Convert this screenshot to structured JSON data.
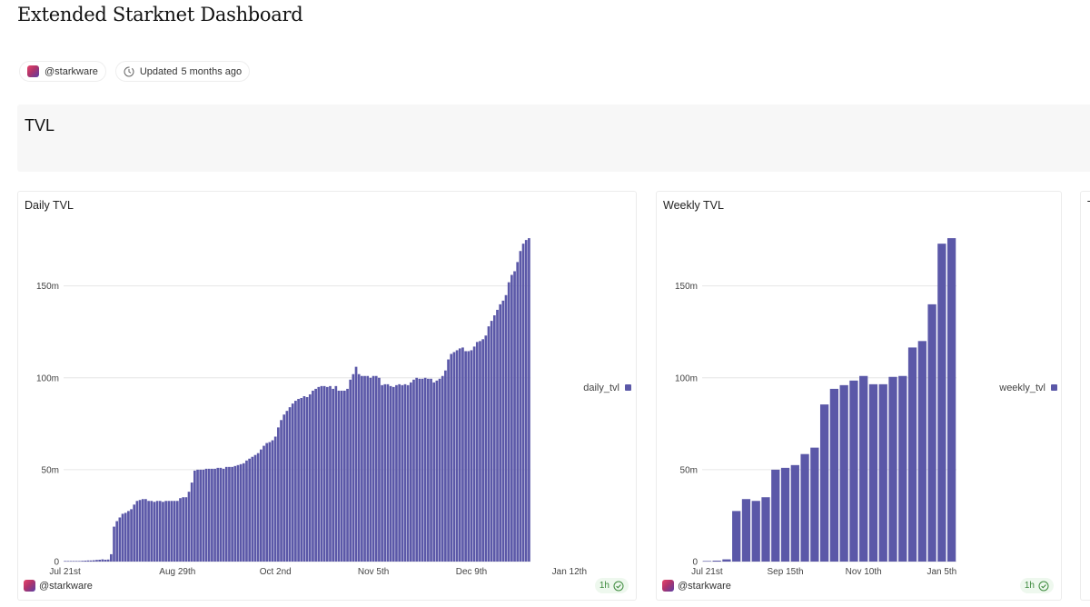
{
  "page": {
    "title": "Extended Starknet Dashboard",
    "author": "@starkware",
    "updated_label": "Updated",
    "updated_value": "5 months ago"
  },
  "section": {
    "title": "TVL"
  },
  "colors": {
    "bar": "#5b58a8",
    "grid": "#e6e6e6",
    "badge_text": "#3d8a3d"
  },
  "cards": [
    {
      "title": "Daily TVL",
      "author": "@starkware",
      "refresh": "1h"
    },
    {
      "title": "Weekly TVL",
      "author": "@starkware",
      "refresh": "1h"
    },
    {
      "title": "T"
    }
  ],
  "chart_data": [
    {
      "type": "bar",
      "series": [
        {
          "name": "daily_tvl",
          "values": [
            0.3,
            0.3,
            0.3,
            0.3,
            0.3,
            0.3,
            0.4,
            0.5,
            0.6,
            0.6,
            0.7,
            0.9,
            1.0,
            1.2,
            1.0,
            1.1,
            4.0,
            19.0,
            22.0,
            24.0,
            26.0,
            26.5,
            27.5,
            28.5,
            31.0,
            33.0,
            33.5,
            34.0,
            34.0,
            33.0,
            33.0,
            32.5,
            33.0,
            33.0,
            32.5,
            33.0,
            33.0,
            33.0,
            33.0,
            33.0,
            34.5,
            35.0,
            35.0,
            38.0,
            43.0,
            49.5,
            50.0,
            50.0,
            50.0,
            50.5,
            50.5,
            50.5,
            50.5,
            51.0,
            51.0,
            50.5,
            51.5,
            51.5,
            51.5,
            52.0,
            52.5,
            53.0,
            53.5,
            55.0,
            56.0,
            57.0,
            58.0,
            59.0,
            61.0,
            63.0,
            64.5,
            65.0,
            66.0,
            68.0,
            73.0,
            77.0,
            80.0,
            82.0,
            84.0,
            86.0,
            87.5,
            88.5,
            89.0,
            90.0,
            89.5,
            91.0,
            93.0,
            94.0,
            95.0,
            95.5,
            95.5,
            95.0,
            95.5,
            94.0,
            95.5,
            93.0,
            93.0,
            93.0,
            94.0,
            99.0,
            102.0,
            106.0,
            102.0,
            101.0,
            101.0,
            101.0,
            100.0,
            101.0,
            101.0,
            100.0,
            96.0,
            96.5,
            96.5,
            95.5,
            95.0,
            96.0,
            96.5,
            96.0,
            96.5,
            96.0,
            97.5,
            99.0,
            100.0,
            99.5,
            99.5,
            100.0,
            99.5,
            99.5,
            97.5,
            98.5,
            99.5,
            101.0,
            104.0,
            110.0,
            113.0,
            114.0,
            115.0,
            116.0,
            116.5,
            114.5,
            114.5,
            115.0,
            117.0,
            119.5,
            120.0,
            121.0,
            123.0,
            128.0,
            131.0,
            134.0,
            137.0,
            140.0,
            142.0,
            145.0,
            152.0,
            156.0,
            158.0,
            163.0,
            169.0,
            173.0,
            175.0,
            176.0
          ]
        }
      ],
      "ylim": [
        0,
        180
      ],
      "yticks": [
        "0",
        "50m",
        "100m",
        "150m"
      ],
      "ytick_values": [
        0,
        50,
        100,
        150
      ],
      "xticks": [
        "Jul 21st",
        "Aug 29th",
        "Oct 2nd",
        "Nov 5th",
        "Dec 9th",
        "Jan 12th"
      ],
      "xtick_index": [
        0,
        39,
        73,
        107,
        141,
        175
      ],
      "legend": "right"
    },
    {
      "type": "bar",
      "series": [
        {
          "name": "weekly_tvl",
          "values": [
            0.3,
            0.5,
            1.2,
            27.5,
            34.0,
            33.0,
            35.0,
            50.0,
            51.0,
            52.5,
            58.5,
            62.0,
            85.5,
            94.0,
            96.0,
            98.5,
            101.0,
            96.5,
            96.5,
            100.5,
            101.0,
            116.5,
            120.0,
            140.0,
            173.0,
            176.0
          ]
        }
      ],
      "ylim": [
        0,
        180
      ],
      "yticks": [
        "0",
        "50m",
        "100m",
        "150m"
      ],
      "ytick_values": [
        0,
        50,
        100,
        150
      ],
      "xticks": [
        "Jul 21st",
        "Sep 15th",
        "Nov 10th",
        "Jan 5th"
      ],
      "xtick_index": [
        0,
        8,
        16,
        24
      ],
      "legend": "right"
    }
  ]
}
